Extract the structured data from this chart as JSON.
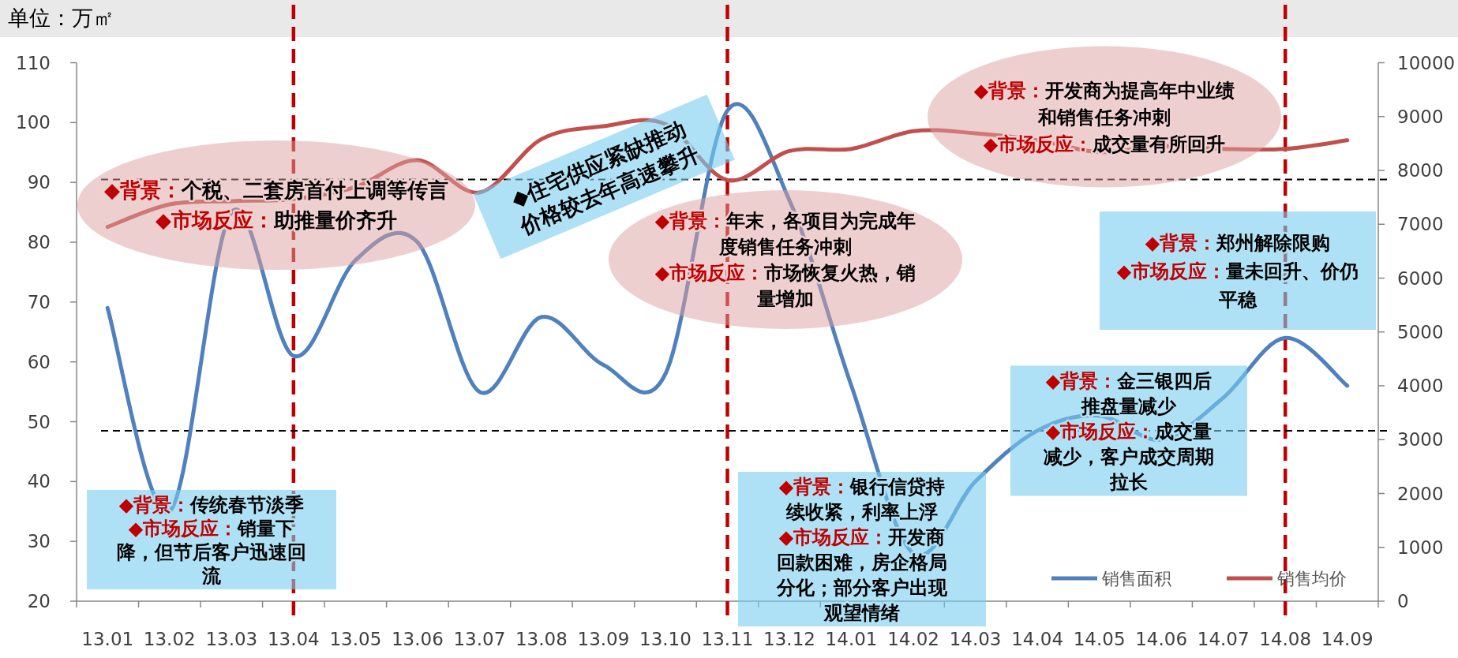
{
  "chart_data": {
    "type": "line",
    "ylabel": "单位：万㎡",
    "categories": [
      "13.01",
      "13.02",
      "13.03",
      "13.04",
      "13.05",
      "13.06",
      "13.07",
      "13.08",
      "13.09",
      "13.10",
      "13.11",
      "13.12",
      "14.01",
      "14.02",
      "14.03",
      "14.04",
      "14.05",
      "14.06",
      "14.07",
      "14.08",
      "14.09"
    ],
    "series": [
      {
        "name": "销售面积",
        "color": "#4f81bd",
        "values": [
          69,
          35,
          85,
          61,
          77,
          80,
          55,
          67.5,
          59.5,
          58,
          102,
          87,
          56,
          28,
          40,
          48.5,
          51,
          47,
          54,
          64,
          56
        ]
      },
      {
        "name": "销售均价",
        "color": "#c0504d",
        "axis": "y2",
        "values": [
          6950,
          7370,
          7430,
          7470,
          7690,
          8190,
          7590,
          8580,
          8820,
          8860,
          7820,
          8360,
          8400,
          8730,
          8690,
          8560,
          8340,
          8450,
          8400,
          8400,
          8560
        ]
      }
    ],
    "ylim": [
      20,
      110
    ],
    "yticks": [
      20,
      30,
      40,
      50,
      60,
      70,
      80,
      90,
      100,
      110
    ],
    "y2lim": [
      0,
      10000
    ],
    "y2ticks": [
      0,
      1000,
      2000,
      3000,
      4000,
      5000,
      6000,
      7000,
      8000,
      9000,
      10000
    ],
    "ref_lines": [
      {
        "axis": "x",
        "value": "13.04",
        "color": "#c00000",
        "line_style": "dashed"
      },
      {
        "axis": "x",
        "value": "13.11",
        "color": "#c00000",
        "line_style": "dashed"
      },
      {
        "axis": "x",
        "value": "14.08",
        "color": "#c00000",
        "line_style": "dashed"
      },
      {
        "axis": "y",
        "value": 90.5,
        "color": "#000000",
        "line_style": "dashed"
      },
      {
        "axis": "y",
        "value": 48.5,
        "color": "#000000",
        "line_style": "dashed"
      }
    ],
    "annotations": [
      "◆背景：个税、二套房首付上调等传言◆市场反应：助推量价齐升",
      "◆住宅供应紧缺推动价格较去年高速攀升",
      "◆背景：年末，各项目为完成年度销售任务冲刺◆市场反应：市场恢复火热，销量增加",
      "◆背景：开发商为提高年中业绩和销售任务冲刺◆市场反应：成交量有所回升",
      "◆背景：郑州解除限购◆市场反应：量未回升、价仍平稳",
      "◆背景：传统春节淡季◆市场反应：销量下降，但节后客户迅速回流",
      "◆背景：银行信贷持续收紧，利率上浮◆市场反应：开发商回款困难，房企格局分化；部分客户出现观望情绪",
      "◆背景：金三银四后推盘量减少◆市场反应：成交量减少，客户成交周期拉长"
    ],
    "legend": "bottom right"
  }
}
